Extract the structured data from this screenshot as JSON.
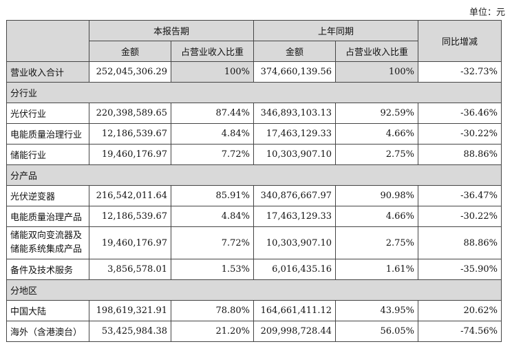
{
  "unit_label": "单位：元",
  "header": {
    "current_period": "本报告期",
    "prior_period": "上年同期",
    "yoy_change": "同比增减",
    "amount": "金额",
    "share_of_revenue": "占营业收入比重"
  },
  "total": {
    "label": "营业收入合计",
    "cur_amount": "252,045,306.29",
    "cur_share": "100%",
    "prior_amount": "374,660,139.56",
    "prior_share": "100%",
    "yoy": "-32.73%"
  },
  "sections": [
    {
      "title": "分行业",
      "rows": [
        {
          "label": "光伏行业",
          "cur_amount": "220,398,589.65",
          "cur_share": "87.44%",
          "prior_amount": "346,893,103.13",
          "prior_share": "92.59%",
          "yoy": "-36.46%"
        },
        {
          "label": "电能质量治理行业",
          "cur_amount": "12,186,539.67",
          "cur_share": "4.84%",
          "prior_amount": "17,463,129.33",
          "prior_share": "4.66%",
          "yoy": "-30.22%"
        },
        {
          "label": "储能行业",
          "cur_amount": "19,460,176.97",
          "cur_share": "7.72%",
          "prior_amount": "10,303,907.10",
          "prior_share": "2.75%",
          "yoy": "88.86%"
        }
      ]
    },
    {
      "title": "分产品",
      "rows": [
        {
          "label": "光伏逆变器",
          "cur_amount": "216,542,011.64",
          "cur_share": "85.91%",
          "prior_amount": "340,876,667.97",
          "prior_share": "90.98%",
          "yoy": "-36.47%"
        },
        {
          "label": "电能质量治理产品",
          "cur_amount": "12,186,539.67",
          "cur_share": "4.84%",
          "prior_amount": "17,463,129.33",
          "prior_share": "4.66%",
          "yoy": "-30.22%"
        },
        {
          "label": "储能双向变流器及储能系统集成产品",
          "label_line1": "储能双向变流器及",
          "label_line2": "储能系统集成产品",
          "cur_amount": "19,460,176.97",
          "cur_share": "7.72%",
          "prior_amount": "10,303,907.10",
          "prior_share": "2.75%",
          "yoy": "88.86%"
        },
        {
          "label": "备件及技术服务",
          "cur_amount": "3,856,578.01",
          "cur_share": "1.53%",
          "prior_amount": "6,016,435.16",
          "prior_share": "1.61%",
          "yoy": "-35.90%"
        }
      ]
    },
    {
      "title": "分地区",
      "rows": [
        {
          "label": "中国大陆",
          "cur_amount": "198,619,321.91",
          "cur_share": "78.80%",
          "prior_amount": "164,661,411.12",
          "prior_share": "43.95%",
          "yoy": "20.62%"
        },
        {
          "label": "海外（含港澳台）",
          "cur_amount": "53,425,984.38",
          "cur_share": "21.20%",
          "prior_amount": "209,998,728.44",
          "prior_share": "56.05%",
          "yoy": "-74.56%"
        }
      ]
    }
  ]
}
